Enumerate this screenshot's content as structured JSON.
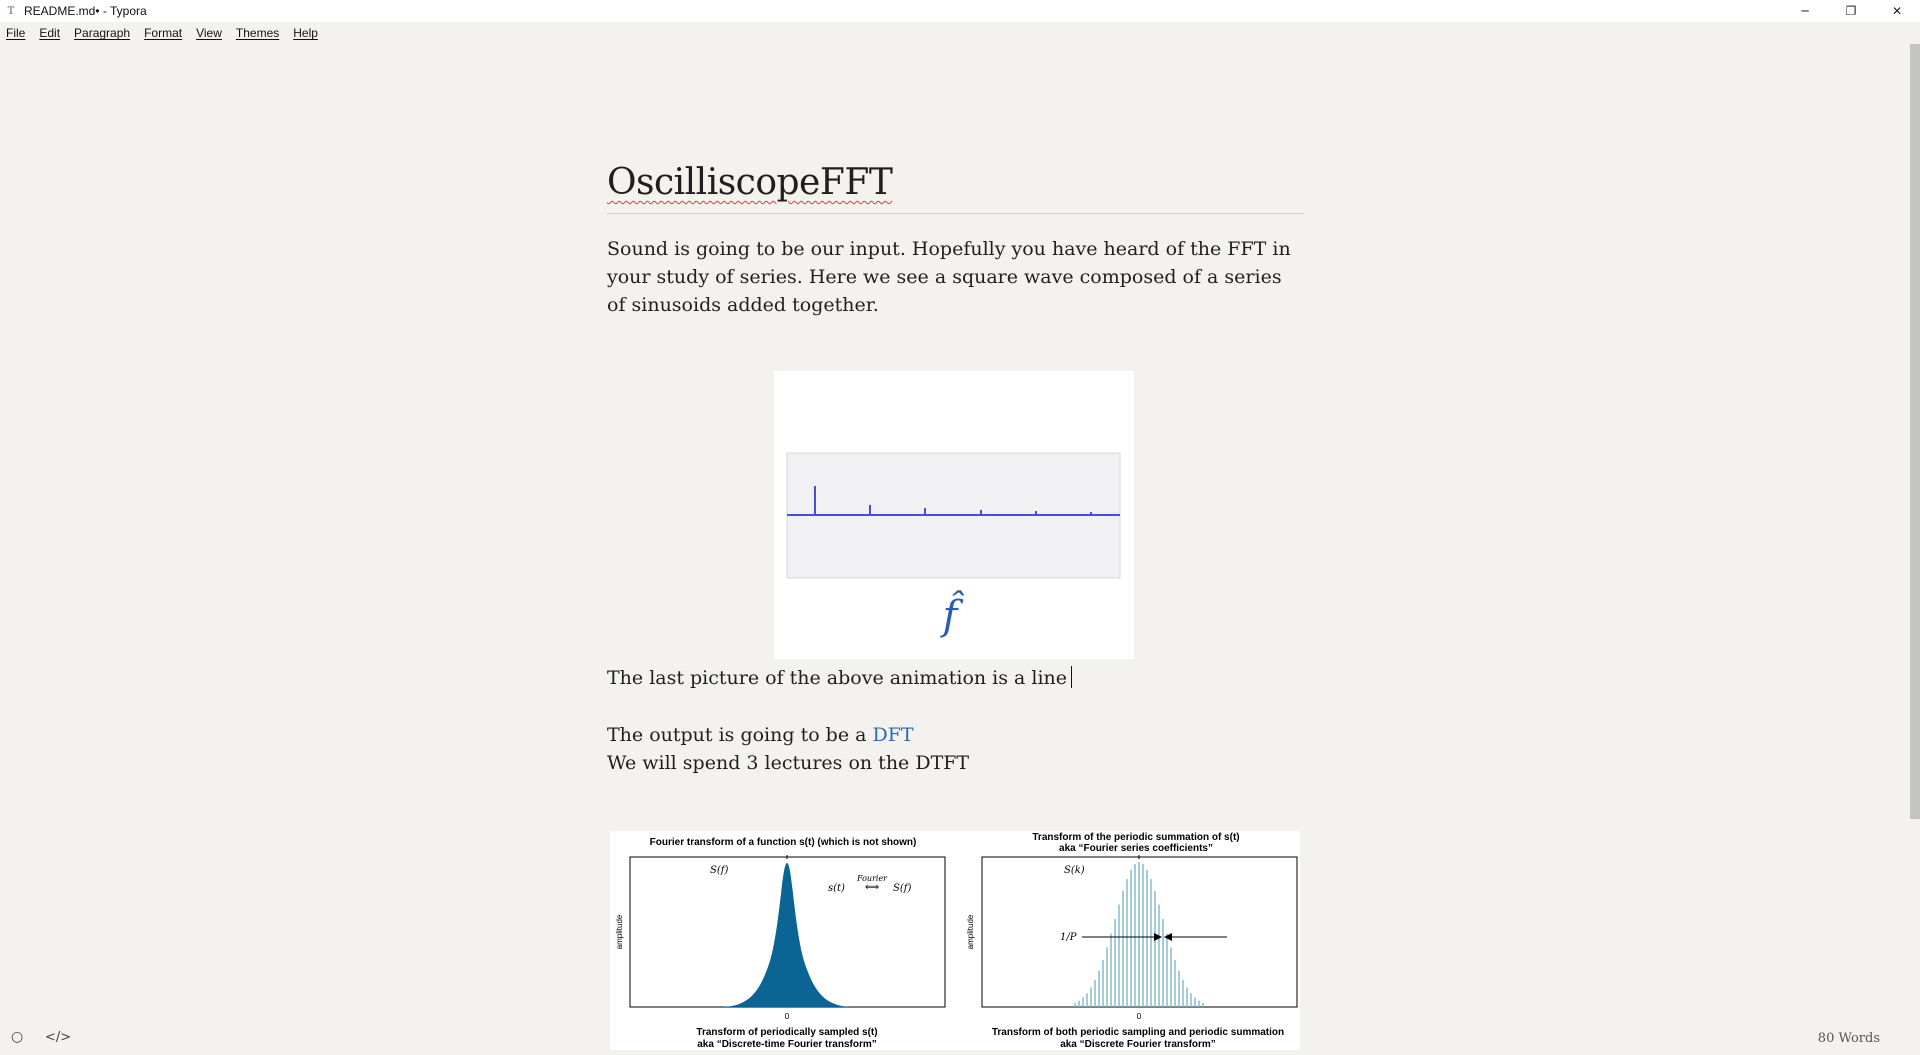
{
  "window": {
    "title": "README.md• - Typora",
    "app_icon": "T"
  },
  "window_controls": {
    "minimize": "─",
    "restore": "❐",
    "close": "✕"
  },
  "menu": [
    "File",
    "Edit",
    "Paragraph",
    "Format",
    "View",
    "Themes",
    "Help"
  ],
  "document": {
    "title": "OscilliscopeFFT",
    "para1": "Sound is going to be our input. Hopefully you have heard of the FFT in your study of series. Here we see a square wave composed of a series of sinusoids added together.",
    "para2": "The last picture of  the above animation is a line",
    "para3_prefix": "The output is going to be a ",
    "para3_link": "DFT",
    "para4": "We will spend 3 lectures on the DTFT"
  },
  "figure1": {
    "symbol": "f̂"
  },
  "figure2": {
    "left_title": "Fourier transform of a function s(t) (which is not shown)",
    "right_title_1": "Transform of the periodic summation of s(t)",
    "right_title_2": "aka “Fourier series coefficients”",
    "left_label": "S(f)",
    "right_label": "S(k)",
    "eq_left": "s(t)",
    "eq_right": "S(f)",
    "eq_arrow_label": "Fourier",
    "ylabel": "amplitude",
    "period_label": "1/P",
    "zero": "0",
    "bottom_left_1": "Transform of periodically sampled s(t)",
    "bottom_left_2": "aka “Discrete-time Fourier transform”",
    "bottom_right_1": "Transform of both periodic sampling and periodic summation",
    "bottom_right_2": "aka “Discrete Fourier transform”"
  },
  "status": {
    "word_count": "80 Words"
  },
  "colors": {
    "spectrum": "#4b4bdc",
    "gaussian": "#0a6494",
    "link": "#2a6ab3"
  }
}
